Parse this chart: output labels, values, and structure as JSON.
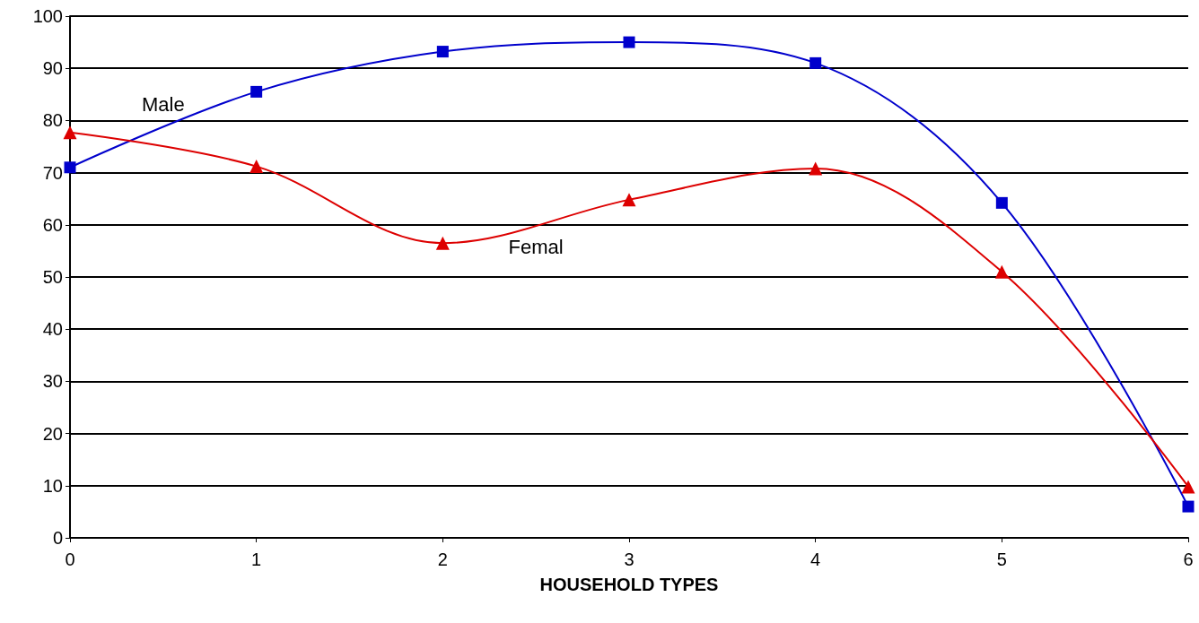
{
  "chart_data": {
    "type": "line",
    "xlabel": "HOUSEHOLD TYPES",
    "x": [
      0,
      1,
      2,
      3,
      4,
      5,
      6
    ],
    "series": [
      {
        "name": "Male",
        "color": "#0000cc",
        "marker": "square",
        "values": [
          71,
          85.5,
          93.2,
          95,
          91,
          64.2,
          6
        ]
      },
      {
        "name": "Femal",
        "color": "#dd0000",
        "marker": "triangle",
        "values": [
          77.7,
          71.2,
          56.5,
          64.8,
          70.8,
          51,
          9.8
        ]
      }
    ],
    "xlim": [
      0,
      6
    ],
    "xticks": [
      0,
      1,
      2,
      3,
      4,
      5,
      6
    ],
    "ylim": [
      0,
      100
    ],
    "yticks": [
      0,
      10,
      20,
      30,
      40,
      50,
      60,
      70,
      80,
      90,
      100
    ],
    "grid": "y",
    "legend": false,
    "line_style": "solid"
  }
}
